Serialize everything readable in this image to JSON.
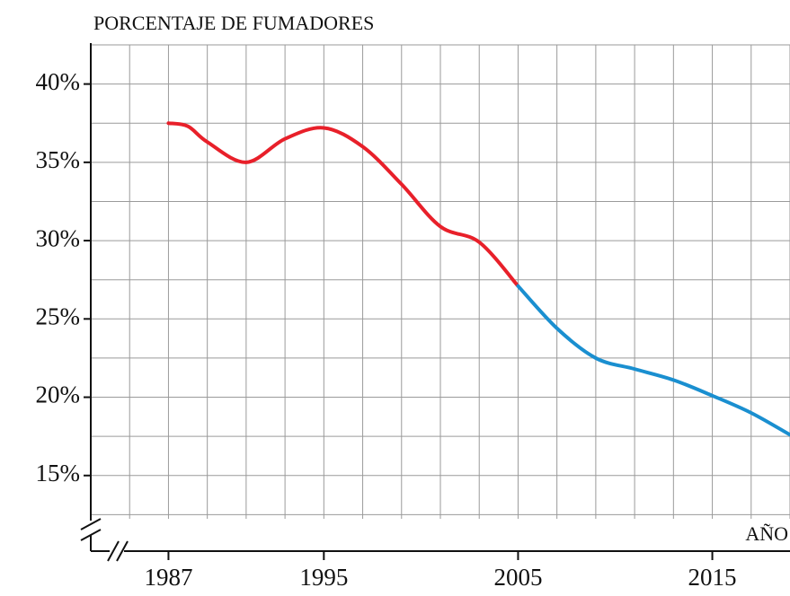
{
  "chart_data": {
    "type": "line",
    "y_axis_label": "PORCENTAJE DE FUMADORES",
    "x_axis_label": "AÑO",
    "series": [
      {
        "color": "#e8202a",
        "x": [
          1987,
          1988,
          1989,
          1991,
          1993,
          1995,
          1997,
          1999,
          2001,
          2003,
          2005
        ],
        "values": [
          37.5,
          37.3,
          36.3,
          35.0,
          36.5,
          37.2,
          36.0,
          33.6,
          30.9,
          29.9,
          27.1
        ]
      },
      {
        "color": "#1a8fd0",
        "x": [
          2005,
          2007,
          2009,
          2011,
          2013,
          2015,
          2017,
          2019
        ],
        "values": [
          27.1,
          24.4,
          22.5,
          21.8,
          21.1,
          20.1,
          19.0,
          17.6
        ]
      }
    ],
    "xlim": [
      1983,
      2019
    ],
    "ylim": [
      10,
      42.5
    ],
    "xticks": [
      1987,
      1995,
      2005,
      2015
    ],
    "yticks": [
      {
        "value": 15,
        "label": "15%"
      },
      {
        "value": 20,
        "label": "20%"
      },
      {
        "value": 25,
        "label": "25%"
      },
      {
        "value": 30,
        "label": "30%"
      },
      {
        "value": 35,
        "label": "35%"
      },
      {
        "value": 40,
        "label": "40%"
      }
    ],
    "xgrid": [
      1985,
      1987,
      1989,
      1991,
      1993,
      1995,
      1997,
      1999,
      2001,
      2003,
      2005,
      2007,
      2009,
      2011,
      2013,
      2015,
      2017,
      2019
    ],
    "ygrid": [
      12.5,
      15,
      17.5,
      20,
      22.5,
      25,
      27.5,
      30,
      32.5,
      35,
      37.5,
      40,
      42.5
    ],
    "grid": true
  }
}
